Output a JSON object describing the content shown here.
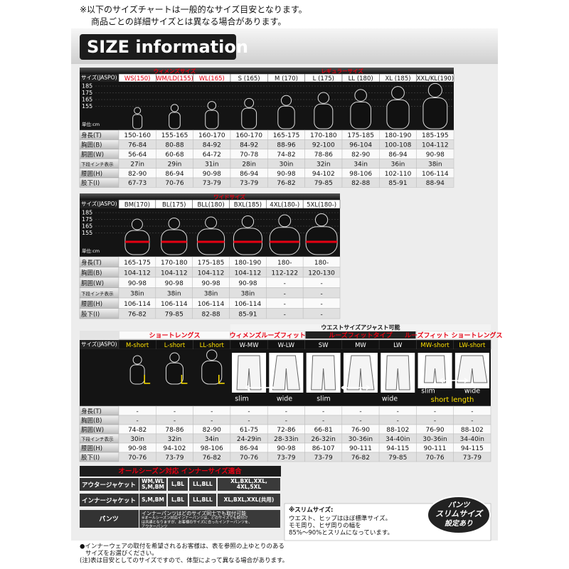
{
  "notes": [
    "※以下のサイズチャートは一般的なサイズ目安となります。",
    "商品ごとの詳細サイズとは異なる場合があります。"
  ],
  "header": {
    "title": "SIZE information"
  },
  "table1": {
    "header_label": "サイズ(JASPO)",
    "groups": [
      "ウィメンズサイズ",
      "レギュラーサイズ"
    ],
    "sizes": [
      "WS(150)",
      "WM/LD(155)",
      "WL(165)",
      "S (165)",
      "M (170)",
      "L (175)",
      "LL (180)",
      "XL (185)",
      "XXL/KL(190)"
    ],
    "scale": [
      "185",
      "175",
      "165",
      "155"
    ],
    "unit": "単位:cm",
    "rows": [
      {
        "label": "身長(T)",
        "values": [
          "150-160",
          "155-165",
          "160-170",
          "160-170",
          "165-175",
          "170-180",
          "175-185",
          "180-190",
          "185-195"
        ]
      },
      {
        "label": "胸囲(B)",
        "values": [
          "76-84",
          "80-88",
          "84-92",
          "84-92",
          "88-96",
          "92-100",
          "96-104",
          "100-108",
          "104-112"
        ]
      },
      {
        "label": "胴囲(W)",
        "values": [
          "56-64",
          "60-68",
          "64-72",
          "70-78",
          "74-82",
          "78-86",
          "82-90",
          "86-94",
          "90-98"
        ]
      },
      {
        "label": "下段インチ表示",
        "values": [
          "27in",
          "29in",
          "31in",
          "28in",
          "30in",
          "32in",
          "34in",
          "36in",
          "38in"
        ]
      },
      {
        "label": "腰囲(H)",
        "values": [
          "82-90",
          "86-94",
          "90-98",
          "86-94",
          "90-98",
          "94-102",
          "98-106",
          "102-110",
          "106-114"
        ]
      },
      {
        "label": "股下(I)",
        "values": [
          "67-73",
          "70-76",
          "73-79",
          "73-79",
          "76-82",
          "79-85",
          "82-88",
          "85-91",
          "88-94"
        ]
      }
    ]
  },
  "table2": {
    "header_label": "サイズ(JASPO)",
    "groups": [
      "ワイドサイズ"
    ],
    "sizes": [
      "BM(170)",
      "BL(175)",
      "BLL(180)",
      "BXL(185)",
      "4XL(180-)",
      "5XL(180-)"
    ],
    "scale": [
      "185",
      "175",
      "165",
      "155"
    ],
    "unit": "単位:cm",
    "rows": [
      {
        "label": "身長(T)",
        "values": [
          "165-175",
          "170-180",
          "175-185",
          "180-190",
          "180-",
          "180-"
        ]
      },
      {
        "label": "胸囲(B)",
        "values": [
          "104-112",
          "104-112",
          "104-112",
          "104-112",
          "112-122",
          "120-130"
        ]
      },
      {
        "label": "胴囲(W)",
        "values": [
          "90-98",
          "90-98",
          "90-98",
          "90-98",
          "-",
          "-"
        ]
      },
      {
        "label": "下段インチ表示",
        "values": [
          "38in",
          "38in",
          "38in",
          "38in",
          "-",
          "-"
        ]
      },
      {
        "label": "腰囲(H)",
        "values": [
          "106-114",
          "106-114",
          "106-114",
          "106-114",
          "-",
          "-"
        ]
      },
      {
        "label": "股下(I)",
        "values": [
          "76-82",
          "79-85",
          "82-88",
          "85-91",
          "-",
          "-"
        ]
      }
    ]
  },
  "table3": {
    "note": "ウエストサイズアジャスト可能",
    "header_label": "サイズ(JASPO)",
    "groups": [
      "ショートレングス",
      "ウィメンズルーズフィット",
      "ルーズフィットタイプ",
      "ルーズフィット ショートレングス"
    ],
    "sizes": [
      "M-short",
      "L-short",
      "LL-short",
      "W-MW",
      "W-LW",
      "SW",
      "MW",
      "LW",
      "MW-short",
      "LW-short"
    ],
    "figure_labels": [
      "slim",
      "wide",
      "slim",
      "wide",
      "slim",
      "wide",
      "short length"
    ],
    "rows": [
      {
        "label": "身長(T)",
        "values": [
          "-",
          "-",
          "-",
          "-",
          "-",
          "-",
          "-",
          "-",
          "-",
          "-"
        ]
      },
      {
        "label": "胸囲(B)",
        "values": [
          "-",
          "-",
          "-",
          "-",
          "-",
          "-",
          "-",
          "-",
          "-",
          "-"
        ]
      },
      {
        "label": "胴囲(W)",
        "values": [
          "74-82",
          "78-86",
          "82-90",
          "61-75",
          "72-86",
          "66-81",
          "76-90",
          "88-102",
          "76-90",
          "88-102"
        ]
      },
      {
        "label": "下段インチ表示",
        "values": [
          "30in",
          "32in",
          "34in",
          "24-29in",
          "28-33in",
          "26-32in",
          "30-36in",
          "34-40in",
          "30-36in",
          "34-40in"
        ]
      },
      {
        "label": "腰囲(H)",
        "values": [
          "90-98",
          "94-102",
          "98-106",
          "86-94",
          "90-98",
          "86-107",
          "90-111",
          "94-115",
          "90-111",
          "94-115"
        ]
      },
      {
        "label": "股下(I)",
        "values": [
          "70-76",
          "73-79",
          "76-82",
          "70-76",
          "73-79",
          "73-79",
          "76-82",
          "79-85",
          "70-76",
          "73-79"
        ]
      }
    ]
  },
  "inner": {
    "title": "オールシーズン対応 インナーサイズ適合",
    "rows": [
      {
        "label": "アウタージャケット",
        "cells": [
          [
            "WM,WL",
            "S,M,BM"
          ],
          [
            "L,BL"
          ],
          [
            "LL,BLL"
          ],
          [
            "XL,BXL,XXL,",
            "4XL,5XL"
          ]
        ]
      },
      {
        "label": "インナージャケット",
        "cells": [
          [
            "S,M,BM"
          ],
          [
            "L,BL"
          ],
          [
            "LL,BLL"
          ],
          [
            "XL,BXL,XXL(共用)"
          ]
        ]
      }
    ],
    "pants_label": "パンツ",
    "pants_text": [
      "インナーパンツはどのサイズ同士でも取付可能",
      "※オールシーズン対応インナーパンツは、どのサイズでも取付け",
      "は共通となりますが、お客様のサイズに合ったインナーパンツを、",
      "アウターパンツ"
    ]
  },
  "slim_note": {
    "title": "※スリムサイズ:",
    "lines": [
      "ウエスト、ヒップはほぼ標準サイズ。",
      "モモ周り、ヒザ周りの幅を",
      "85%〜90%とスリムになっています。"
    ],
    "badge": [
      "パンツ",
      "スリムサイズ",
      "設定あり"
    ]
  },
  "footer": [
    "●インナーウェアの取付を希望されるお客様は、表を参照の上ゆとりのある",
    "サイズをお選びください。",
    "(注)表は目安としてのサイズですので、体型によって異なる場合があります。"
  ]
}
